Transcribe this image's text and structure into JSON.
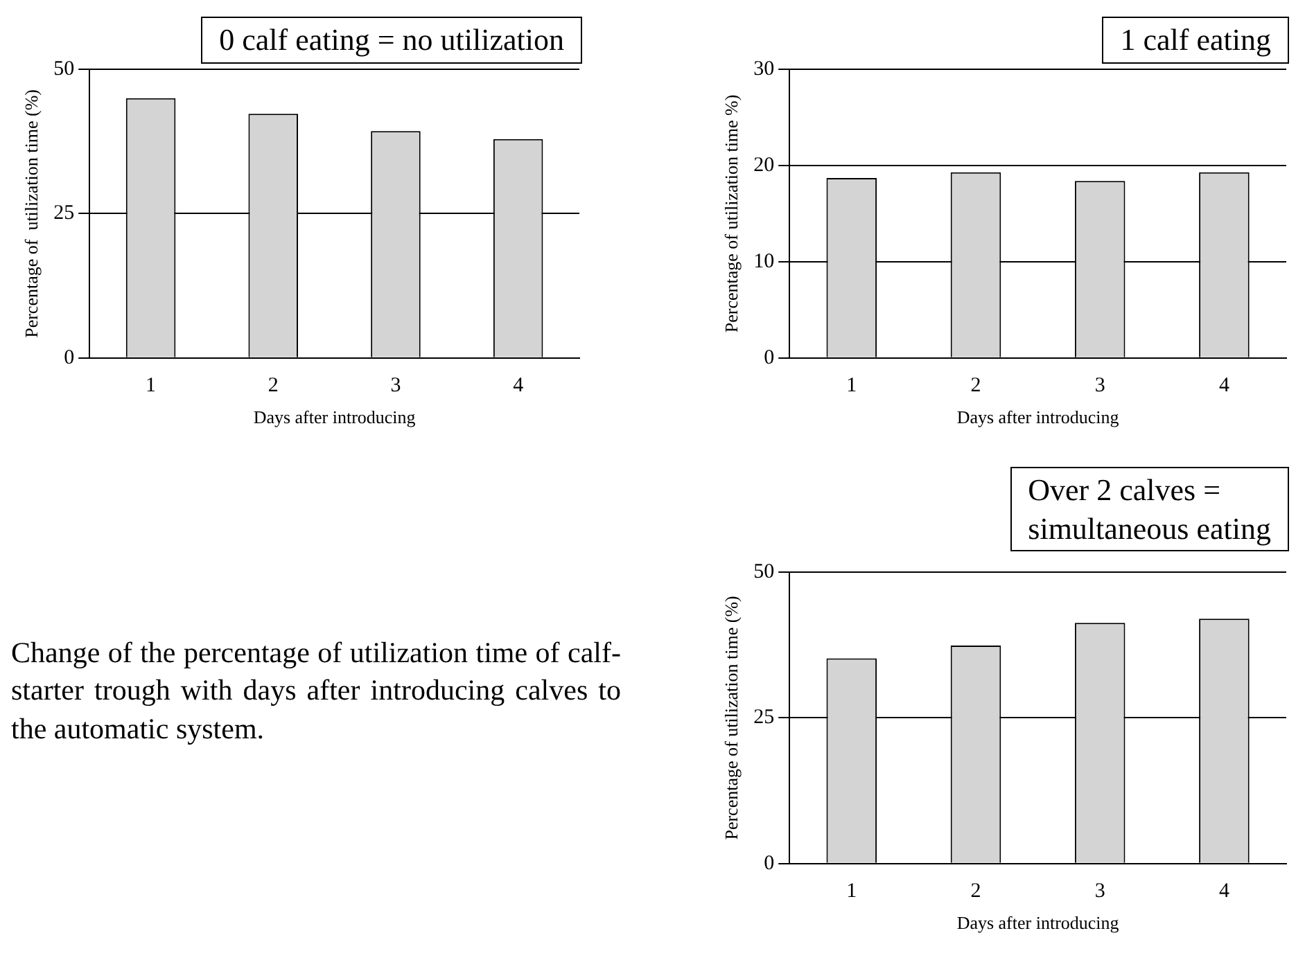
{
  "chart_data": [
    {
      "type": "bar",
      "title": "0 calf eating = no utilization",
      "xlabel": "Days after introducing",
      "ylabel": "Percentage of  utilization time (%)",
      "categories": [
        "1",
        "2",
        "3",
        "4"
      ],
      "series": [
        {
          "color": "#d4d4d4",
          "values": [
            45,
            42.3,
            39.3,
            37.9
          ]
        }
      ],
      "ylim": [
        0,
        50
      ],
      "yticks": [
        0,
        25,
        50
      ],
      "grid": "y",
      "annotations": [
        "Change of the percentage of utilization time of calf-starter trough with days after introducing calves to the automatic system."
      ]
    },
    {
      "type": "bar",
      "title": "1 calf eating",
      "xlabel": "Days after introducing",
      "ylabel": "Percentage of utilization time %)",
      "categories": [
        "1",
        "2",
        "3",
        "4"
      ],
      "series": [
        {
          "color": "#d4d4d4",
          "values": [
            18.7,
            19.3,
            18.4,
            19.3
          ]
        }
      ],
      "ylim": [
        0,
        30
      ],
      "yticks": [
        0,
        10,
        20,
        30
      ],
      "grid": "y"
    },
    {
      "type": "bar",
      "title": "Over 2 calves =\nsimultaneous eating",
      "xlabel": "Days after introducing",
      "ylabel": "Percentage of utilization time (%)",
      "categories": [
        "1",
        "2",
        "3",
        "4"
      ],
      "series": [
        {
          "color": "#d4d4d4",
          "values": [
            35.2,
            37.4,
            41.3,
            42
          ]
        }
      ],
      "ylim": [
        0,
        50
      ],
      "yticks": [
        0,
        25,
        50
      ],
      "grid": "y"
    }
  ]
}
